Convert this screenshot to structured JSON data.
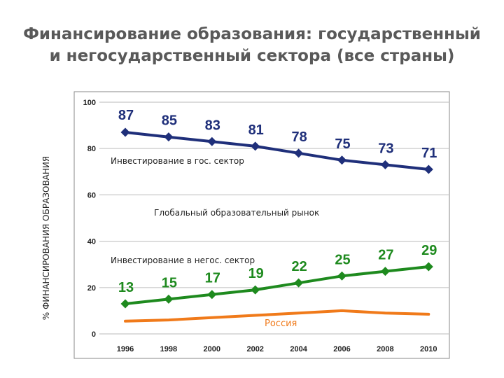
{
  "title": {
    "line1": "Финансирование образования: государственный",
    "line2": "и негосударственный сектора (все страны)"
  },
  "chart_data": {
    "type": "line",
    "title": "Финансирование образования: государственный и негосударственный сектора (все страны)",
    "xlabel": "",
    "ylabel": "% ФИНАНСИРОВАНИЯ ОБРАЗОВАНИЯ",
    "x": [
      "1996",
      "1998",
      "2000",
      "2002",
      "2004",
      "2006",
      "2008",
      "2010"
    ],
    "ylim": [
      0,
      100
    ],
    "yticks": [
      "0",
      "20",
      "40",
      "60",
      "80",
      "100"
    ],
    "grid": true,
    "series": [
      {
        "name": "Инвестирование в гос. сектор",
        "color": "#1f2f7a",
        "marker": "diamond",
        "labels": true,
        "values": [
          87,
          85,
          83,
          81,
          78,
          75,
          73,
          71
        ]
      },
      {
        "name": "Инвестирование в негос. сектор",
        "color": "#1e8a1e",
        "marker": "diamond",
        "labels": true,
        "values": [
          13,
          15,
          17,
          19,
          22,
          25,
          27,
          29
        ]
      },
      {
        "name": "Россия",
        "color": "#f07a1a",
        "marker": "none",
        "labels": false,
        "values": [
          5.5,
          6,
          7,
          8,
          9,
          10,
          9,
          8.5
        ]
      }
    ],
    "annotations": [
      {
        "text": "Инвестирование в гос. сектор",
        "series": 0
      },
      {
        "text": "Глобальный образовательный рынок",
        "series": -1
      },
      {
        "text": "Инвестирование в негос. сектор",
        "series": 1
      },
      {
        "text": "Россия",
        "series": 2
      }
    ]
  }
}
